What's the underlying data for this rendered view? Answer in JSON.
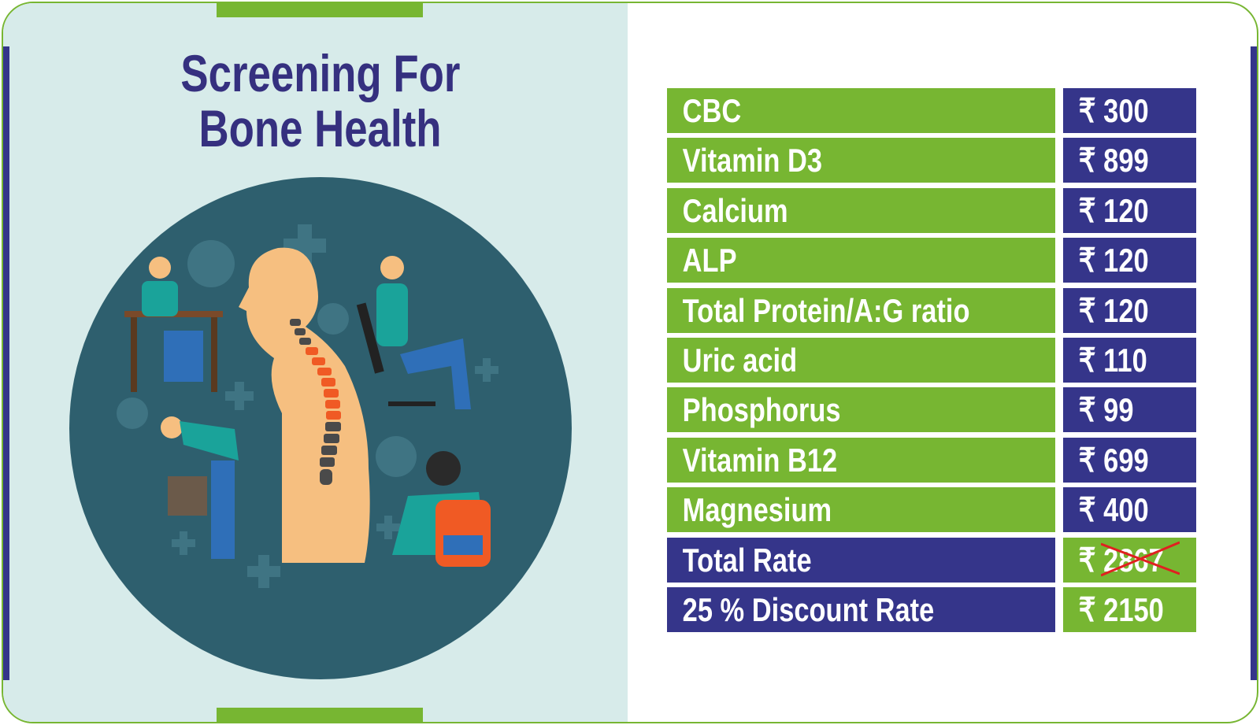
{
  "title": {
    "line1": "Screening For",
    "line2": "Bone Health"
  },
  "currency_symbol": "₹",
  "colors": {
    "green": "#77b632",
    "navy": "#35358a",
    "panel": "#d7ebea",
    "circle": "#2e5f6e",
    "strike": "#e02020"
  },
  "tests": [
    {
      "name": "CBC",
      "price": "₹ 300"
    },
    {
      "name": "Vitamin D3",
      "price": "₹ 899"
    },
    {
      "name": "Calcium",
      "price": "₹ 120"
    },
    {
      "name": "ALP",
      "price": "₹ 120"
    },
    {
      "name": "Total Protein/A:G ratio",
      "price": "₹ 120"
    },
    {
      "name": "Uric acid",
      "price": "₹ 110"
    },
    {
      "name": "Phosphorus",
      "price": "₹ 99"
    },
    {
      "name": "Vitamin B12",
      "price": "₹ 699"
    },
    {
      "name": "Magnesium",
      "price": "₹ 400"
    }
  ],
  "total": {
    "label": "Total Rate",
    "price": "₹ 2867"
  },
  "discount": {
    "label": "25 % Discount Rate",
    "price": "₹ 2150"
  }
}
